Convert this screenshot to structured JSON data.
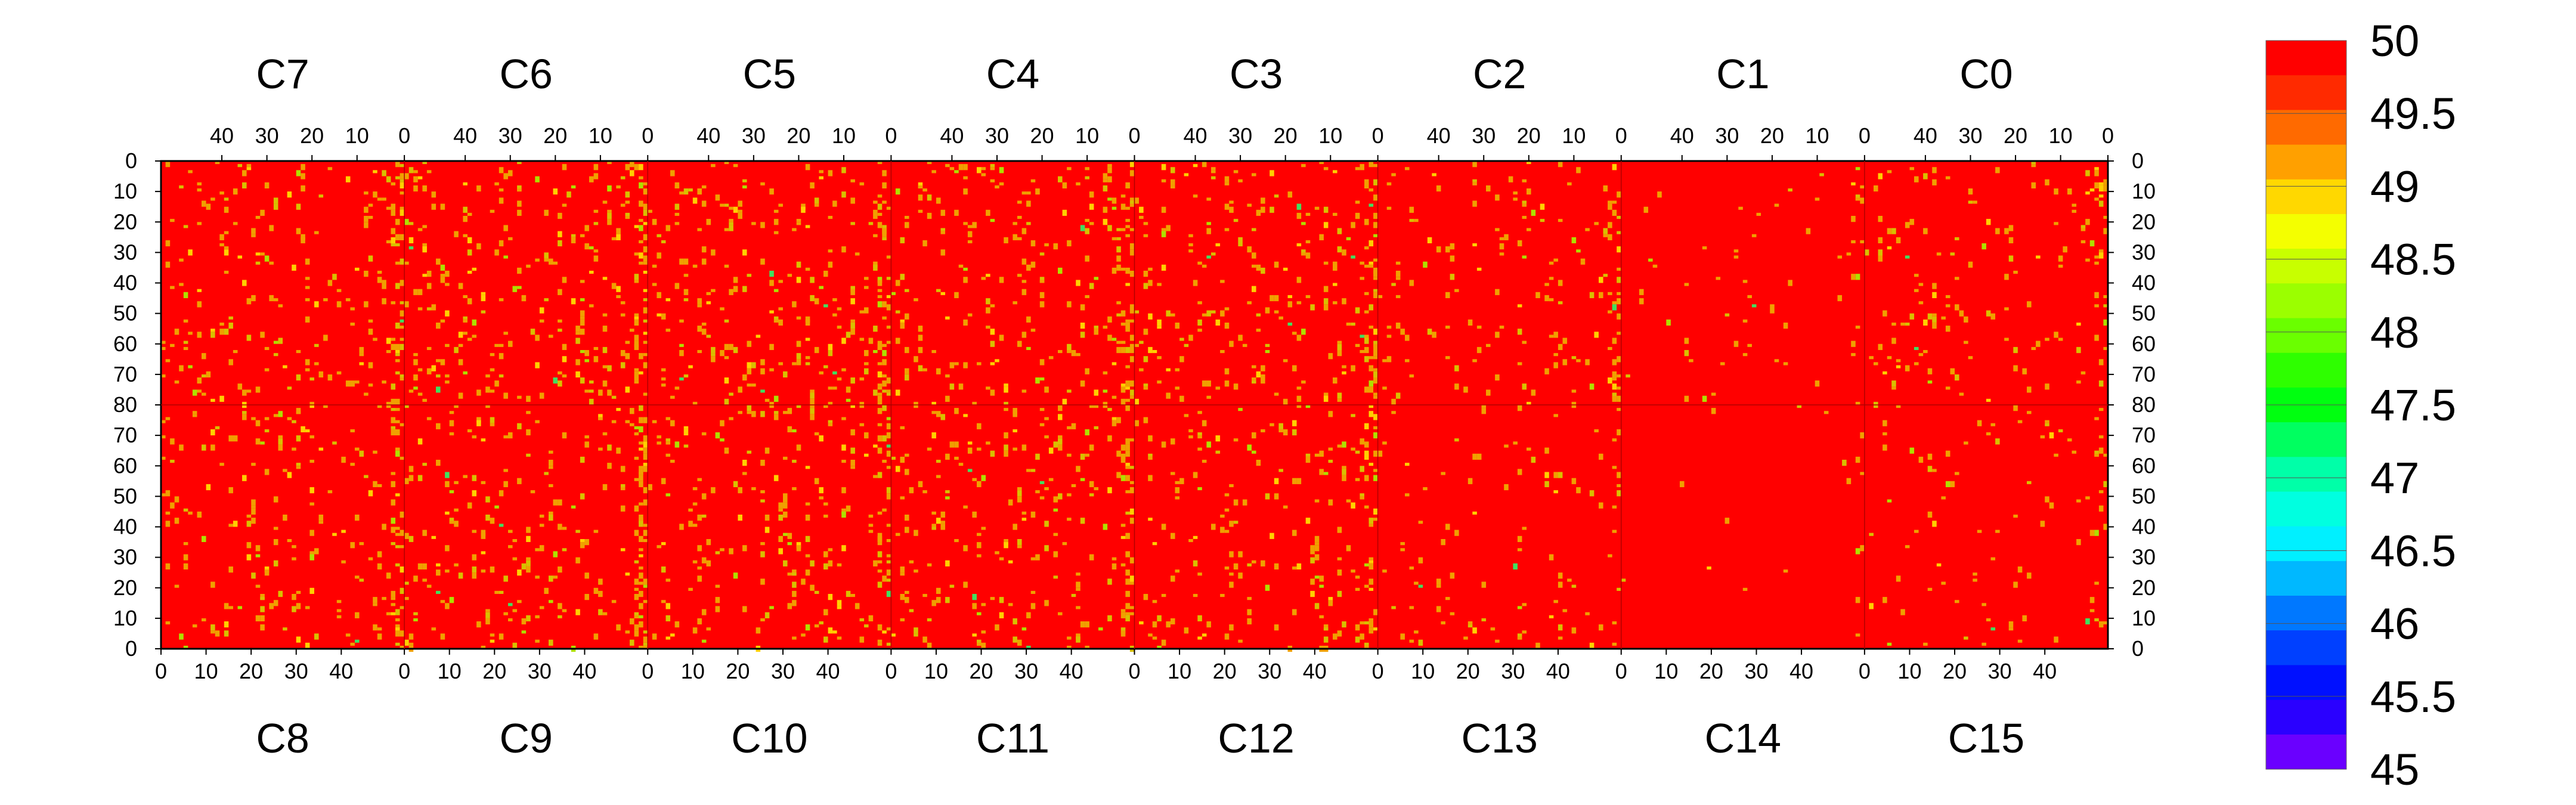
{
  "chart_data": {
    "type": "heatmap",
    "title": "",
    "xlabel": "",
    "ylabel": "",
    "top_chips": [
      "C7",
      "C6",
      "C5",
      "C4",
      "C3",
      "C2",
      "C1",
      "C0"
    ],
    "bottom_chips": [
      "C8",
      "C9",
      "C10",
      "C11",
      "C12",
      "C13",
      "C14",
      "C15"
    ],
    "top_x_tick_labels": [
      "40",
      "30",
      "20",
      "10",
      "0"
    ],
    "bottom_x_tick_labels": [
      "0",
      "10",
      "20",
      "30",
      "40"
    ],
    "y_tick_labels": [
      "0",
      "10",
      "20",
      "30",
      "40",
      "50",
      "60",
      "70",
      "80",
      "70",
      "60",
      "50",
      "40",
      "30",
      "20",
      "10",
      "0"
    ],
    "columns_per_chip": 54,
    "rows_per_half": 80,
    "zlim": [
      45,
      50
    ],
    "colorbar": {
      "tick_labels": [
        "50",
        "49.5",
        "49",
        "48.5",
        "48",
        "47.5",
        "47",
        "46.5",
        "46",
        "45.5",
        "45"
      ],
      "colors": [
        "#ff0000",
        "#ff2a00",
        "#ff6a00",
        "#ffa000",
        "#ffd800",
        "#f4ff00",
        "#c8ff00",
        "#9bff00",
        "#6aff00",
        "#2eff00",
        "#00ff10",
        "#00ff60",
        "#00ffa8",
        "#00ffe0",
        "#00f0ff",
        "#00b8ff",
        "#0078ff",
        "#0040ff",
        "#0010ff",
        "#2a00ff",
        "#6a00ff"
      ]
    },
    "background_value": 50,
    "speckle_colors": [
      "#f0a000",
      "#d8c000",
      "#ffd000",
      "#aee000",
      "#40e060"
    ],
    "notes_density": [
      0.04,
      0.05,
      0.05,
      0.05,
      0.045,
      0.035,
      0.01,
      0.03
    ]
  }
}
